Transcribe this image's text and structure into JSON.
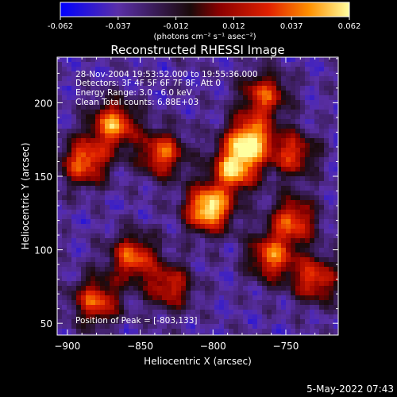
{
  "chart_data": {
    "type": "heatmap",
    "title": "Reconstructed RHESSI Image",
    "xlabel": "Heliocentric X (arcsec)",
    "ylabel": "Heliocentric Y (arcsec)",
    "xlim": [
      -907,
      -714
    ],
    "ylim": [
      42,
      231
    ],
    "x_ticks": [
      -900,
      -850,
      -800,
      -750
    ],
    "y_ticks": [
      50,
      100,
      150,
      200
    ],
    "colorbar": {
      "range": [
        -0.062,
        0.062
      ],
      "ticks": [
        "-0.062",
        "-0.037",
        "-0.012",
        "0.012",
        "0.037",
        "0.062"
      ],
      "label": "(photons cm⁻² s⁻¹ asec⁻²)",
      "colors": [
        "#0000ff",
        "#5a2fa8",
        "#1a0a0a",
        "#8a0000",
        "#e02000",
        "#ff9000",
        "#ffffa0"
      ]
    },
    "info_lines": [
      "28-Nov-2004 19:53:52.000 to 19:55:36.000",
      "Detectors: 3F 4F 5F 6F 7F 8F, Att 0",
      "Energy Range: 3.0 - 6.0 keV",
      "Clean      Total counts: 6.88E+03"
    ],
    "peak_label": "Position of Peak = [-803,133]",
    "peak": [
      -803,
      133
    ],
    "bright_regions": [
      {
        "x": -803,
        "y": 128,
        "level": 0.062
      },
      {
        "x": -785,
        "y": 155,
        "level": 0.045
      },
      {
        "x": -775,
        "y": 175,
        "level": 0.05
      },
      {
        "x": -868,
        "y": 185,
        "level": 0.04
      },
      {
        "x": -888,
        "y": 160,
        "level": 0.035
      },
      {
        "x": -855,
        "y": 95,
        "level": 0.03
      },
      {
        "x": -880,
        "y": 65,
        "level": 0.028
      },
      {
        "x": -835,
        "y": 165,
        "level": 0.03
      },
      {
        "x": -745,
        "y": 120,
        "level": 0.028
      },
      {
        "x": -760,
        "y": 95,
        "level": 0.03
      },
      {
        "x": -730,
        "y": 80,
        "level": 0.025
      },
      {
        "x": -765,
        "y": 205,
        "level": 0.025
      },
      {
        "x": -745,
        "y": 165,
        "level": 0.02
      },
      {
        "x": -830,
        "y": 75,
        "level": 0.018
      }
    ]
  },
  "footer": {
    "timestamp": "5-May-2022 07:43"
  }
}
